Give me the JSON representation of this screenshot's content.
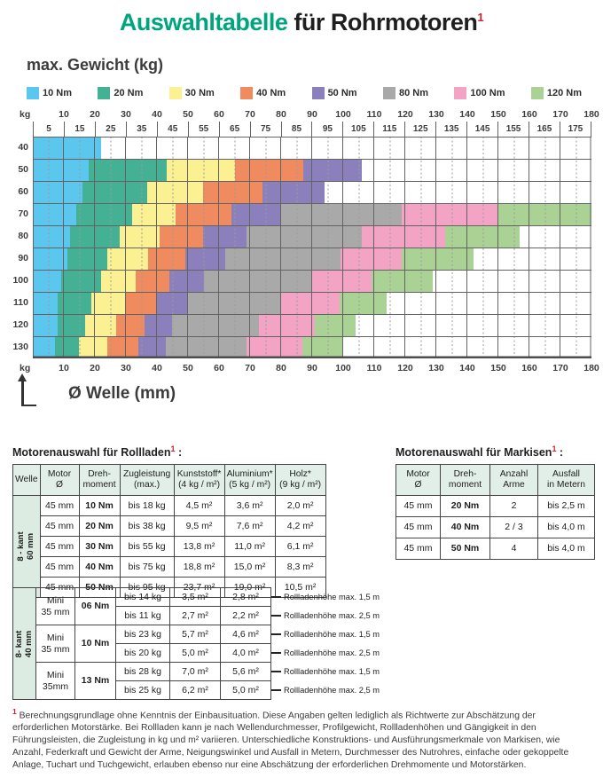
{
  "title": {
    "highlight": "Auswahltabelle",
    "rest": " für Rohrmotoren",
    "sup": "1"
  },
  "sections": {
    "rollladen": {
      "text": "Motorenauswahl für Rollladen",
      "sup": "1",
      "colon": " :"
    },
    "markisen": {
      "text": "Motorenauswahl für Markisen",
      "sup": "1",
      "colon": " :"
    }
  },
  "footnote": {
    "sup": "1",
    "text": "Berechnungsgrundlage ohne Kenntnis der Einbausituation. Diese Angaben gelten lediglich als Richtwerte zur Abschätzung der erforderlichen Motorstärke. Bei Rollladen kann je nach Wellendurchmesser, Profilgewicht, Rollladenhöhen und Gängigkeit in den Führungsleisten, die Zugleistung in kg und m² variieren. Unterschiedliche Konstruktions- und Ausführungsmerkmale von Markisen, wie Anzahl, Federkraft und Gewicht der Arme, Neigungswinkel und Ausfall in Metern, Durchmesser des Nutrohres, einfache oder gekoppelte Anlage, Tuchart und Tuchgewicht, erlauben ebenso nur eine Abschätzung der erforderlichen Drehmomente und Motorstärken."
  },
  "chart_data": [
    {
      "type": "bar",
      "variant": "horizontal-stacked-selection-matrix",
      "title": "max. Gewicht (kg)",
      "xlabel": "Ø Welle (mm)",
      "ylabel": "kg",
      "xlim": [
        0,
        180
      ],
      "x_major_ticks": [
        10,
        20,
        30,
        40,
        50,
        60,
        70,
        80,
        90,
        100,
        110,
        120,
        130,
        140,
        150,
        160,
        170,
        180
      ],
      "x_minor_ticks": [
        5,
        15,
        25,
        35,
        45,
        55,
        65,
        75,
        85,
        95,
        105,
        115,
        125,
        135,
        145,
        155,
        165,
        175
      ],
      "legend": [
        {
          "label": "10 Nm",
          "color": "#5bc6ee"
        },
        {
          "label": "20 Nm",
          "color": "#45b194"
        },
        {
          "label": "30 Nm",
          "color": "#fbf193"
        },
        {
          "label": "40 Nm",
          "color": "#f08a5f"
        },
        {
          "label": "50 Nm",
          "color": "#8b80bc"
        },
        {
          "label": "80 Nm",
          "color": "#a9a9a9"
        },
        {
          "label": "100 Nm",
          "color": "#f3a3c4"
        },
        {
          "label": "120 Nm",
          "color": "#a9d294"
        }
      ],
      "rows": [
        {
          "kg": 40,
          "bands": [
            [
              "10 Nm",
              22
            ]
          ]
        },
        {
          "kg": 50,
          "bands": [
            [
              "10 Nm",
              18
            ],
            [
              "20 Nm",
              43
            ],
            [
              "30 Nm",
              65
            ],
            [
              "40 Nm",
              87
            ],
            [
              "50 Nm",
              106
            ]
          ]
        },
        {
          "kg": 60,
          "bands": [
            [
              "10 Nm",
              16
            ],
            [
              "20 Nm",
              37
            ],
            [
              "30 Nm",
              55
            ],
            [
              "40 Nm",
              74
            ],
            [
              "50 Nm",
              94
            ]
          ]
        },
        {
          "kg": 70,
          "bands": [
            [
              "10 Nm",
              14
            ],
            [
              "20 Nm",
              32
            ],
            [
              "30 Nm",
              46
            ],
            [
              "40 Nm",
              64
            ],
            [
              "50 Nm",
              80
            ],
            [
              "80 Nm",
              119
            ],
            [
              "100 Nm",
              150
            ],
            [
              "120 Nm",
              180
            ]
          ]
        },
        {
          "kg": 80,
          "bands": [
            [
              "10 Nm",
              12
            ],
            [
              "20 Nm",
              28
            ],
            [
              "30 Nm",
              41
            ],
            [
              "40 Nm",
              55
            ],
            [
              "50 Nm",
              69
            ],
            [
              "80 Nm",
              106
            ],
            [
              "100 Nm",
              133
            ],
            [
              "120 Nm",
              157
            ]
          ]
        },
        {
          "kg": 90,
          "bands": [
            [
              "10 Nm",
              11
            ],
            [
              "20 Nm",
              24
            ],
            [
              "30 Nm",
              37
            ],
            [
              "40 Nm",
              49
            ],
            [
              "50 Nm",
              62
            ],
            [
              "80 Nm",
              99
            ],
            [
              "100 Nm",
              119
            ],
            [
              "120 Nm",
              142
            ]
          ]
        },
        {
          "kg": 100,
          "bands": [
            [
              "10 Nm",
              9
            ],
            [
              "20 Nm",
              22
            ],
            [
              "30 Nm",
              33
            ],
            [
              "40 Nm",
              44
            ],
            [
              "50 Nm",
              55
            ],
            [
              "80 Nm",
              90
            ],
            [
              "100 Nm",
              109
            ],
            [
              "120 Nm",
              129
            ]
          ]
        },
        {
          "kg": 110,
          "bands": [
            [
              "10 Nm",
              8
            ],
            [
              "20 Nm",
              19
            ],
            [
              "30 Nm",
              30
            ],
            [
              "40 Nm",
              40
            ],
            [
              "50 Nm",
              50
            ],
            [
              "80 Nm",
              80
            ],
            [
              "100 Nm",
              99
            ],
            [
              "120 Nm",
              114
            ]
          ]
        },
        {
          "kg": 120,
          "bands": [
            [
              "10 Nm",
              8
            ],
            [
              "20 Nm",
              17
            ],
            [
              "30 Nm",
              27
            ],
            [
              "40 Nm",
              36
            ],
            [
              "50 Nm",
              45
            ],
            [
              "80 Nm",
              73
            ],
            [
              "100 Nm",
              91
            ],
            [
              "120 Nm",
              104
            ]
          ]
        },
        {
          "kg": 130,
          "bands": [
            [
              "10 Nm",
              7
            ],
            [
              "20 Nm",
              15
            ],
            [
              "30 Nm",
              24
            ],
            [
              "40 Nm",
              34
            ],
            [
              "50 Nm",
              43
            ],
            [
              "80 Nm",
              69
            ],
            [
              "100 Nm",
              87
            ],
            [
              "120 Nm",
              100
            ]
          ]
        }
      ]
    },
    {
      "type": "table",
      "title": "Motorenauswahl für Rollladen",
      "headers": [
        "Welle",
        "Motor\nØ",
        "Dreh-\nmoment",
        "Zugleistung\n(max.)",
        "Kunststoff*\n(4 kg / m²)",
        "Aluminium*\n(5 kg / m²)",
        "Holz*\n(9 kg / m²)"
      ],
      "group_60": {
        "welle_label": "8 - kant\n60 mm",
        "rows": [
          [
            "45 mm",
            "10 Nm",
            "bis 18 kg",
            "4,5 m²",
            "3,6 m²",
            "2,0 m²"
          ],
          [
            "45 mm",
            "20 Nm",
            "bis 38 kg",
            "9,5 m²",
            "7,6 m²",
            "4,2 m²"
          ],
          [
            "45 mm",
            "30 Nm",
            "bis 55 kg",
            "13,8 m²",
            "11,0 m²",
            "6,1 m²"
          ],
          [
            "45 mm",
            "40 Nm",
            "bis 75 kg",
            "18,8 m²",
            "15,0 m²",
            "8,3 m²"
          ],
          [
            "45 mm",
            "50 Nm",
            "bis 95 kg",
            "23,7 m²",
            "19,0 m²",
            "10,5 m²"
          ]
        ]
      },
      "group_40": {
        "welle_label": "8- kant\n40 mm",
        "motor_groups": [
          {
            "motor": "Mini\n35 mm",
            "torque": "06 Nm",
            "rows": [
              [
                "bis 14 kg",
                "3,5 m²",
                "2,8 m²",
                "Rollladenhöhe max. 1,5 m"
              ],
              [
                "bis 11 kg",
                "2,7 m²",
                "2,2 m²",
                "Rollladenhöhe max. 2,5 m"
              ]
            ]
          },
          {
            "motor": "Mini\n35 mm",
            "torque": "10 Nm",
            "rows": [
              [
                "bis 23 kg",
                "5,7 m²",
                "4,6 m²",
                "Rollladenhöhe max. 1,5 m"
              ],
              [
                "bis 20 kg",
                "5,0 m²",
                "4,0 m²",
                "Rollladenhöhe max. 2,5 m"
              ]
            ]
          },
          {
            "motor": "Mini\n35mm",
            "torque": "13 Nm",
            "rows": [
              [
                "bis 28 kg",
                "7,0 m²",
                "5,6 m²",
                "Rollladenhöhe max. 1,5 m"
              ],
              [
                "bis 25 kg",
                "6,2 m²",
                "5,0 m²",
                "Rollladenhöhe max. 2,5 m"
              ]
            ]
          }
        ]
      }
    },
    {
      "type": "table",
      "title": "Motorenauswahl für Markisen",
      "headers": [
        "Motor\nØ",
        "Dreh-\nmoment",
        "Anzahl\nArme",
        "Ausfall\nin Metern"
      ],
      "rows": [
        [
          "45 mm",
          "20 Nm",
          "2",
          "bis 2,5 m"
        ],
        [
          "45 mm",
          "40 Nm",
          "2 / 3",
          "bis 4,0 m"
        ],
        [
          "45 mm",
          "50 Nm",
          "4",
          "bis 4,0 m"
        ]
      ]
    }
  ]
}
